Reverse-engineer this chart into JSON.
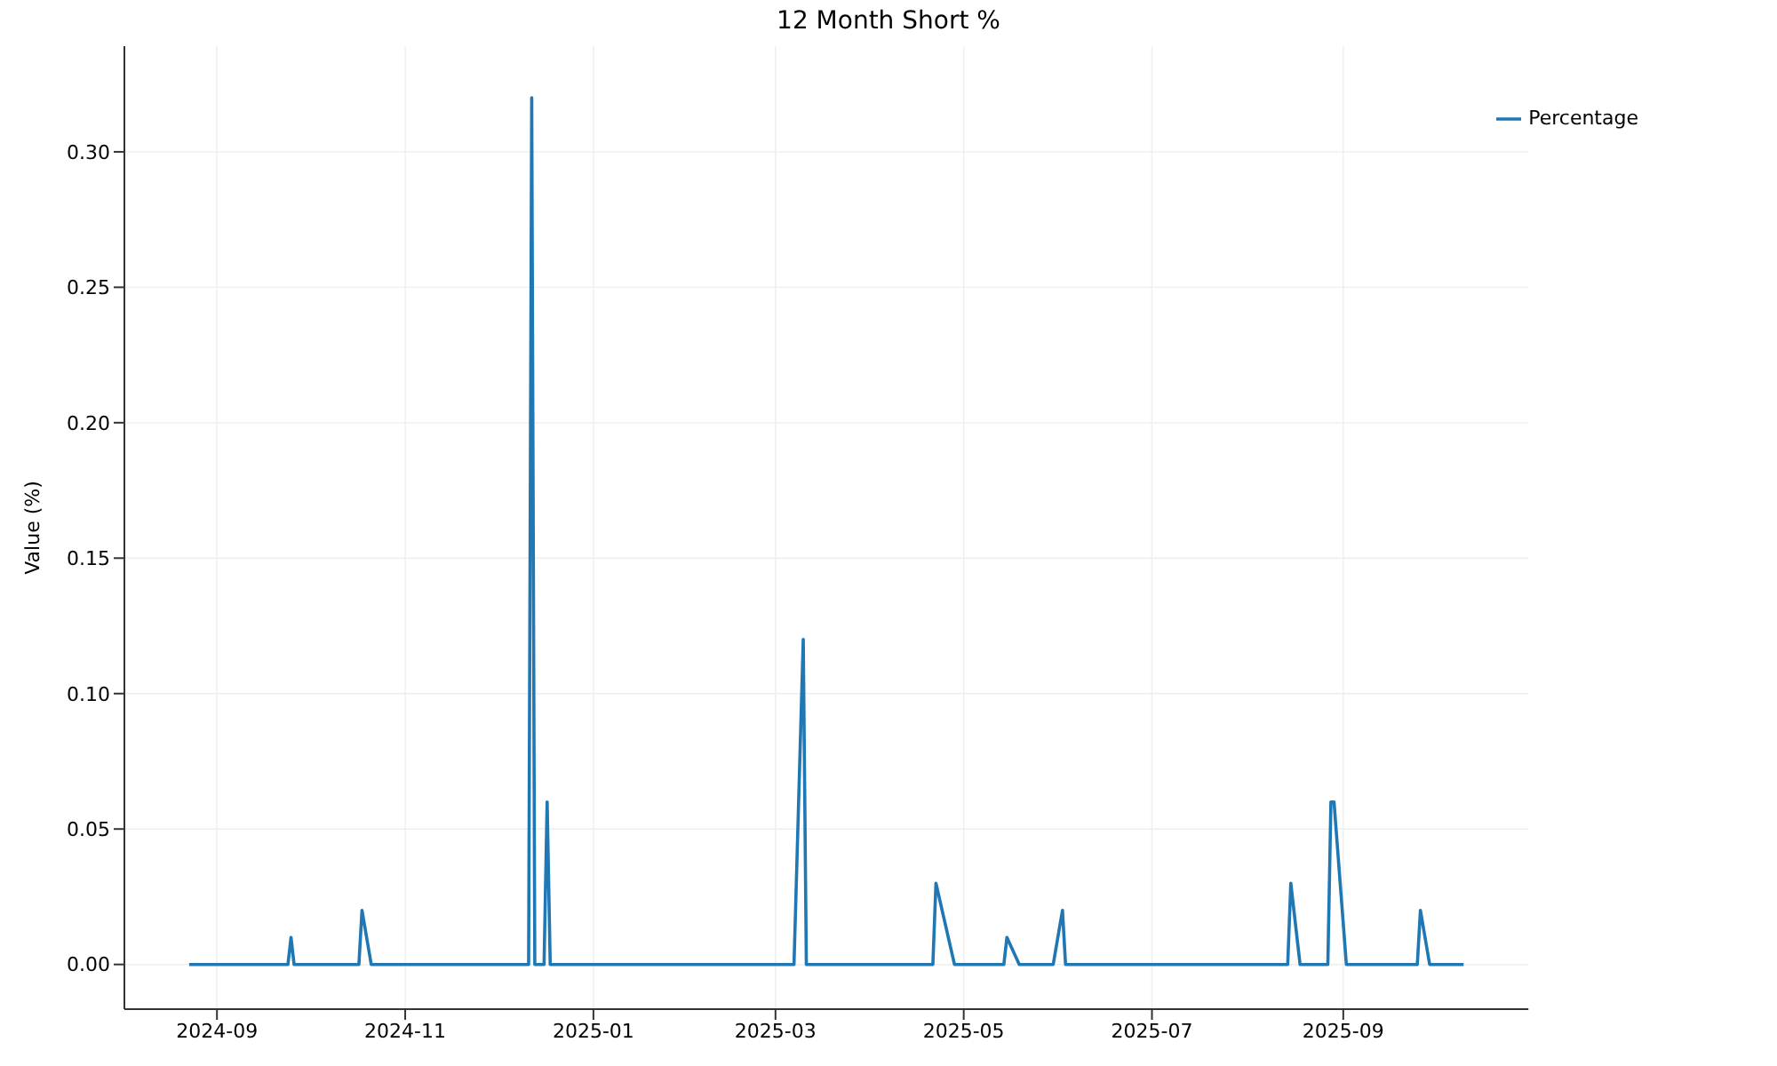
{
  "chart_data": {
    "type": "line",
    "title": "12 Month Short %",
    "ylabel": "Value (%)",
    "x": [
      "2024-08-23",
      "2024-09-24",
      "2024-09-25",
      "2024-09-26",
      "2024-10-17",
      "2024-10-18",
      "2024-10-21",
      "2024-12-11",
      "2024-12-12",
      "2024-12-13",
      "2024-12-16",
      "2024-12-17",
      "2024-12-18",
      "2025-03-07",
      "2025-03-10",
      "2025-03-11",
      "2025-04-21",
      "2025-04-22",
      "2025-04-28",
      "2025-05-14",
      "2025-05-15",
      "2025-05-19",
      "2025-05-30",
      "2025-06-02",
      "2025-06-03",
      "2025-08-14",
      "2025-08-15",
      "2025-08-18",
      "2025-08-27",
      "2025-08-28",
      "2025-08-29",
      "2025-09-02",
      "2025-09-25",
      "2025-09-26",
      "2025-09-29",
      "2025-10-10"
    ],
    "series": [
      {
        "name": "Percentage",
        "color": "#1f77b4",
        "values": [
          0,
          0,
          0.01,
          0,
          0,
          0.02,
          0,
          0,
          0.32,
          0,
          0,
          0.06,
          0,
          0,
          0.12,
          0,
          0,
          0.03,
          0,
          0,
          0.01,
          0,
          0,
          0.02,
          0,
          0,
          0.03,
          0,
          0,
          0.06,
          0.06,
          0,
          0,
          0.02,
          0,
          0
        ]
      }
    ],
    "xlim": [
      "2024-08-02",
      "2025-10-31"
    ],
    "xticks": [
      {
        "value": "2024-09-01",
        "label": "2024-09"
      },
      {
        "value": "2024-11-01",
        "label": "2024-11"
      },
      {
        "value": "2025-01-01",
        "label": "2025-01"
      },
      {
        "value": "2025-03-01",
        "label": "2025-03"
      },
      {
        "value": "2025-05-01",
        "label": "2025-05"
      },
      {
        "value": "2025-07-01",
        "label": "2025-07"
      },
      {
        "value": "2025-09-01",
        "label": "2025-09"
      }
    ],
    "ylim": [
      -0.0165,
      0.339
    ],
    "yticks": [
      {
        "value": 0,
        "label": "0.00"
      },
      {
        "value": 0.05,
        "label": "0.05"
      },
      {
        "value": 0.1,
        "label": "0.10"
      },
      {
        "value": 0.15,
        "label": "0.15"
      },
      {
        "value": 0.2,
        "label": "0.20"
      },
      {
        "value": 0.25,
        "label": "0.25"
      },
      {
        "value": 0.3,
        "label": "0.30"
      }
    ],
    "grid": true,
    "legend": "top right",
    "marker": "none",
    "line_style": "solid"
  }
}
